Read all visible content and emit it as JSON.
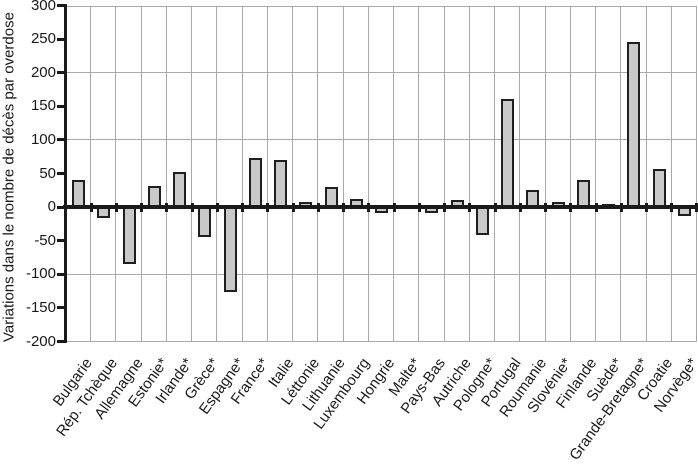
{
  "chart_data": {
    "type": "bar",
    "title": "",
    "xlabel": "",
    "ylabel": "Variations dans le nombre de décès par overdose",
    "ylim": [
      -200,
      300
    ],
    "ytick_step": 50,
    "gridline_step": 100,
    "grid": "on",
    "legend": "none",
    "categories": [
      "Bulgarie",
      "Rép. Tchèque",
      "Allemagne",
      "Estonie*",
      "Irlande*",
      "Grèce*",
      "Espagne*",
      "France*",
      "Italie",
      "Léttonie",
      "Lithuanie",
      "Luxembourg",
      "Hongrie",
      "Malte*",
      "Pays-Bas",
      "Autriche",
      "Pologne*",
      "Portugal",
      "Roumanie",
      "Slovénie*",
      "Finlande",
      "Suède*",
      "Grande-Bretagne*",
      "Croatie",
      "Norvège*"
    ],
    "values": [
      40,
      -16,
      -85,
      32,
      52,
      -45,
      -126,
      73,
      70,
      8,
      30,
      12,
      -9,
      3,
      -9,
      11,
      -42,
      161,
      25,
      7,
      41,
      5,
      245,
      57,
      -13
    ],
    "colors": {
      "bar_fill": "#c9c9c9",
      "bar_border": "#1f1f1f",
      "axis": "#1a1a1a",
      "gridline": "#a9a9a9",
      "background": "#ffffff"
    }
  }
}
